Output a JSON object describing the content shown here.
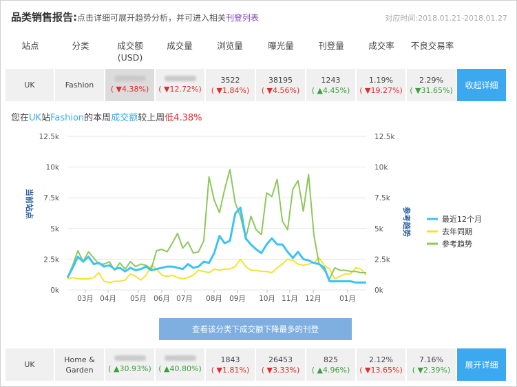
{
  "header": {
    "title": "品类销售报告:",
    "hint_prefix": "点击详细可展开趋势分析，并可进入相关",
    "hint_link": "刊登列表",
    "date_range": "对应时间:2018.01.21-2018.01.27"
  },
  "columns": [
    "站点",
    "分类",
    "成交额\n(USD)",
    "成交量",
    "浏览量",
    "曝光量",
    "刊登量",
    "成交率",
    "不良交易率"
  ],
  "rows": [
    {
      "site": "UK",
      "category": "Fashion",
      "gmv_change": "( ▼4.38%)",
      "volume_change": "( ▼12.72%)",
      "views": "3522",
      "views_change": "( ▼1.84%)",
      "impressions": "38195",
      "impressions_change": "( ▼4.56%)",
      "listings": "1243",
      "listings_change": "( ▲4.45%)",
      "conversion": "1.19%",
      "conversion_change": "( ▼19.27%)",
      "defect": "2.29%",
      "defect_change": "( ▼31.65%)",
      "button": "收起详细"
    },
    {
      "site": "UK",
      "category": "Home &\nGarden",
      "gmv_change": "( ▲30.93%)",
      "volume_change": "( ▲40.80%)",
      "views": "1843",
      "views_change": "( ▼1.81%)",
      "impressions": "26453",
      "impressions_change": "( ▼3.33%)",
      "listings": "825",
      "listings_change": "( ▲4.96%)",
      "conversion": "2.12%",
      "conversion_change": "( ▼13.65%)",
      "defect": "7.16%",
      "defect_change": "( ▼2.39%)",
      "button": "展开详细"
    }
  ],
  "summary": {
    "p1": "您在",
    "site": "UK",
    "p2": "站",
    "category": "Fashion",
    "p3": "的本周",
    "metric": "成交额",
    "p4": "较上周",
    "direction": "低",
    "value": "4.38%"
  },
  "cta": "查看该分类下成交额下降最多的刊登",
  "colors": {
    "last12": "#3bc3f5",
    "lastyear": "#f5e22a",
    "trend": "#8cc85a",
    "button": "#3ba8f0"
  },
  "chart_data": {
    "type": "line",
    "ylabel_left": "当前站点",
    "ylabel_right": "参考趋势",
    "ylim": [
      0,
      12500
    ],
    "yticks": [
      "0k",
      "2.5k",
      "5k",
      "7.5k",
      "10k",
      "12.5k"
    ],
    "xticks": [
      "03月",
      "04月",
      "05月",
      "06月",
      "07月",
      "08月",
      "09月",
      "10月",
      "11月",
      "12月",
      "01月"
    ],
    "legend_position": "right",
    "series": [
      {
        "name": "最近12个月",
        "values": [
          1000,
          1800,
          2700,
          2300,
          2700,
          2100,
          2200,
          1900,
          2000,
          1700,
          1800,
          1500,
          1800,
          1600,
          1700,
          1900,
          1600,
          1700,
          1800,
          1900,
          1900,
          1800,
          1700,
          2100,
          1800,
          1900,
          2300,
          2200,
          3000,
          4400,
          3800,
          4000,
          6200,
          6700,
          4200,
          3700,
          3300,
          3000,
          3700,
          4200,
          3700,
          3700,
          3100,
          2600,
          3100,
          2500,
          2400,
          2200,
          2100,
          1800,
          700,
          700,
          700,
          700,
          700,
          600,
          600,
          600
        ]
      },
      {
        "name": "去年同期",
        "values": [
          900,
          1000,
          900,
          900,
          900,
          1000,
          1400,
          700,
          600,
          700,
          700,
          800,
          1300,
          1100,
          800,
          1200,
          2000,
          1700,
          1200,
          1100,
          1200,
          1000,
          900,
          1000,
          1200,
          1600,
          1500,
          1400,
          1700,
          1600,
          1700,
          1700,
          1900,
          2500,
          1900,
          1600,
          1600,
          1500,
          1500,
          1400,
          1800,
          2100,
          2500,
          2400,
          2100,
          2000,
          2100,
          2200,
          2600,
          2000,
          1700,
          900,
          1100,
          1300,
          1300,
          1800,
          1700,
          1200
        ]
      },
      {
        "name": "参考趋势",
        "values": [
          1000,
          2000,
          3200,
          2300,
          3100,
          2600,
          2100,
          2100,
          2300,
          1600,
          2200,
          1700,
          2300,
          1900,
          2100,
          2000,
          1700,
          3200,
          3300,
          3100,
          3800,
          4600,
          3400,
          3900,
          3000,
          3100,
          4000,
          9200,
          7300,
          6300,
          8200,
          9800,
          7100,
          6000,
          4200,
          6000,
          4900,
          4500,
          7900,
          7600,
          9000,
          5600,
          4900,
          8200,
          8900,
          6400,
          9400,
          4500,
          2100,
          1600,
          900,
          1800,
          1600,
          1600,
          1500,
          1500,
          1400,
          1400
        ]
      }
    ]
  }
}
